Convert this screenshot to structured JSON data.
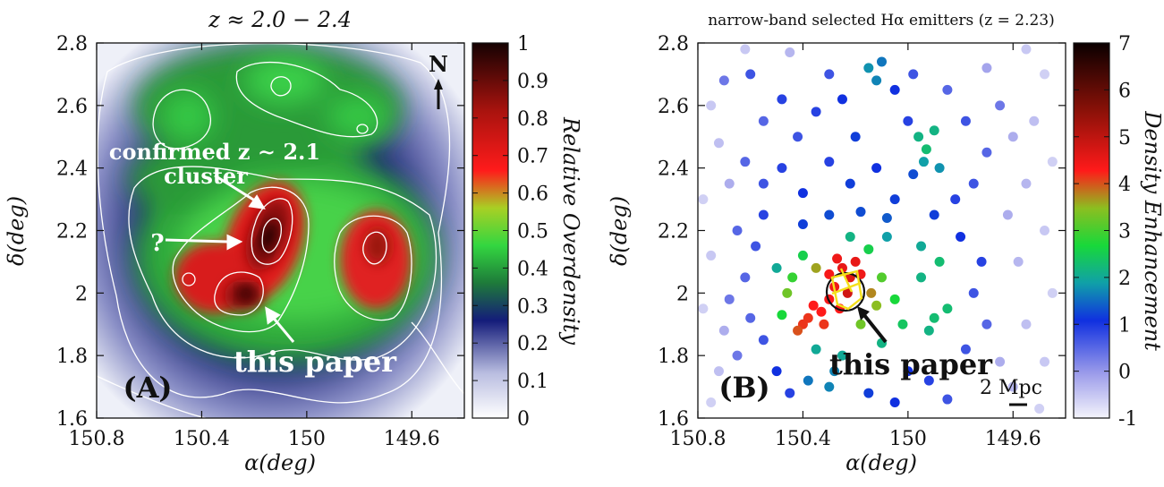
{
  "chart_data": [
    {
      "panel": "(A)",
      "type": "heatmap",
      "title": "z ≈ 2.0 − 2.4",
      "xlabel": "α(deg)",
      "ylabel": "δ(deg)",
      "xlim": [
        150.8,
        149.4
      ],
      "ylim": [
        1.6,
        2.8
      ],
      "x_ticks": [
        "150.8",
        "150.4",
        "150",
        "149.6"
      ],
      "y_ticks": [
        "1.6",
        "1.8",
        "2",
        "2.2",
        "2.4",
        "2.6",
        "2.8"
      ],
      "colorbar": {
        "label": "Relative Overdensity",
        "range": [
          0,
          1
        ],
        "ticks": [
          "0",
          "0.1",
          "0.2",
          "0.3",
          "0.4",
          "0.5",
          "0.6",
          "0.7",
          "0.8",
          "0.9",
          "1"
        ]
      },
      "annotations": {
        "north": "N",
        "cluster_line1": "confirmed z ∼ 2.1",
        "cluster_line2": "cluster",
        "question": "?",
        "this_paper": "this paper"
      },
      "peaks": [
        {
          "ra": 150.2,
          "dec": 2.16,
          "level": 1.0
        },
        {
          "ra": 150.25,
          "dec": 1.99,
          "level": 0.85
        },
        {
          "ra": 149.72,
          "dec": 2.12,
          "level": 0.78
        },
        {
          "ra": 150.45,
          "dec": 2.05,
          "level": 0.62
        },
        {
          "ra": 150.15,
          "dec": 2.68,
          "level": 0.4
        },
        {
          "ra": 150.5,
          "dec": 2.55,
          "level": 0.38
        },
        {
          "ra": 149.85,
          "dec": 2.55,
          "level": 0.4
        }
      ]
    },
    {
      "panel": "(B)",
      "type": "scatter",
      "title": "narrow-band selected Hα emitters (z = 2.23)",
      "xlabel": "α(deg)",
      "ylabel": "δ(deg)",
      "xlim": [
        150.8,
        149.4
      ],
      "ylim": [
        1.6,
        2.8
      ],
      "x_ticks": [
        "150.8",
        "150.4",
        "150",
        "149.6"
      ],
      "y_ticks": [
        "1.6",
        "1.8",
        "2",
        "2.2",
        "2.4",
        "2.6",
        "2.8"
      ],
      "colorbar": {
        "label": "Density Enhancement",
        "range": [
          -1,
          7
        ],
        "ticks": [
          "-1",
          "0",
          "1",
          "2",
          "3",
          "4",
          "5",
          "6",
          "7"
        ]
      },
      "annotations": {
        "this_paper": "this paper",
        "scale_bar": "2 Mpc"
      },
      "points": [
        {
          "ra": 150.25,
          "dec": 2.08,
          "v": 3.3
        },
        {
          "ra": 150.22,
          "dec": 2.05,
          "v": 3.4
        },
        {
          "ra": 150.28,
          "dec": 2.02,
          "v": 3.2
        },
        {
          "ra": 150.3,
          "dec": 1.98,
          "v": 3.1
        },
        {
          "ra": 150.33,
          "dec": 1.94,
          "v": 3.0
        },
        {
          "ra": 150.36,
          "dec": 1.96,
          "v": 3.0
        },
        {
          "ra": 150.38,
          "dec": 1.92,
          "v": 2.9
        },
        {
          "ra": 150.4,
          "dec": 1.9,
          "v": 2.9
        },
        {
          "ra": 150.42,
          "dec": 1.88,
          "v": 2.8
        },
        {
          "ra": 150.2,
          "dec": 2.1,
          "v": 3.3
        },
        {
          "ra": 150.18,
          "dec": 2.06,
          "v": 3.2
        },
        {
          "ra": 150.26,
          "dec": 1.95,
          "v": 3.0
        },
        {
          "ra": 150.32,
          "dec": 1.9,
          "v": 2.9
        },
        {
          "ra": 150.23,
          "dec": 2.0,
          "v": 3.6
        },
        {
          "ra": 150.27,
          "dec": 2.11,
          "v": 3.2
        },
        {
          "ra": 150.3,
          "dec": 2.06,
          "v": 3.1
        },
        {
          "ra": 150.14,
          "dec": 2.0,
          "v": 2.6
        },
        {
          "ra": 150.12,
          "dec": 1.96,
          "v": 2.4
        },
        {
          "ra": 150.46,
          "dec": 2.0,
          "v": 2.3
        },
        {
          "ra": 150.44,
          "dec": 2.05,
          "v": 2.1
        },
        {
          "ra": 150.1,
          "dec": 2.05,
          "v": 2.2
        },
        {
          "ra": 150.35,
          "dec": 2.08,
          "v": 2.5
        },
        {
          "ra": 150.18,
          "dec": 1.9,
          "v": 2.3
        },
        {
          "ra": 150.05,
          "dec": 1.98,
          "v": 2.0
        },
        {
          "ra": 150.48,
          "dec": 1.93,
          "v": 2.0
        },
        {
          "ra": 150.4,
          "dec": 2.12,
          "v": 1.9
        },
        {
          "ra": 150.15,
          "dec": 2.14,
          "v": 1.9
        },
        {
          "ra": 150.02,
          "dec": 1.9,
          "v": 1.8
        },
        {
          "ra": 149.9,
          "dec": 1.92,
          "v": 1.7
        },
        {
          "ra": 149.85,
          "dec": 1.95,
          "v": 1.7
        },
        {
          "ra": 149.95,
          "dec": 2.05,
          "v": 1.6
        },
        {
          "ra": 149.88,
          "dec": 2.1,
          "v": 1.7
        },
        {
          "ra": 149.92,
          "dec": 1.88,
          "v": 1.6
        },
        {
          "ra": 150.25,
          "dec": 1.8,
          "v": 1.5
        },
        {
          "ra": 150.35,
          "dec": 1.82,
          "v": 1.5
        },
        {
          "ra": 150.1,
          "dec": 1.84,
          "v": 1.6
        },
        {
          "ra": 150.5,
          "dec": 2.08,
          "v": 1.5
        },
        {
          "ra": 150.22,
          "dec": 2.18,
          "v": 1.6
        },
        {
          "ra": 150.08,
          "dec": 2.18,
          "v": 1.4
        },
        {
          "ra": 149.95,
          "dec": 2.15,
          "v": 1.5
        },
        {
          "ra": 149.96,
          "dec": 2.5,
          "v": 1.6
        },
        {
          "ra": 149.93,
          "dec": 2.46,
          "v": 1.7
        },
        {
          "ra": 149.9,
          "dec": 2.52,
          "v": 1.6
        },
        {
          "ra": 149.94,
          "dec": 2.42,
          "v": 1.4
        },
        {
          "ra": 149.88,
          "dec": 2.4,
          "v": 1.3
        },
        {
          "ra": 150.15,
          "dec": 2.72,
          "v": 1.3
        },
        {
          "ra": 150.12,
          "dec": 2.68,
          "v": 1.2
        },
        {
          "ra": 150.1,
          "dec": 2.74,
          "v": 1.1
        },
        {
          "ra": 150.3,
          "dec": 1.7,
          "v": 1.2
        },
        {
          "ra": 150.38,
          "dec": 1.72,
          "v": 1.1
        },
        {
          "ra": 150.28,
          "dec": 1.75,
          "v": 1.2
        },
        {
          "ra": 150.7,
          "dec": 2.68,
          "v": 0.2
        },
        {
          "ra": 150.6,
          "dec": 2.7,
          "v": 0.4
        },
        {
          "ra": 150.55,
          "dec": 2.55,
          "v": 0.3
        },
        {
          "ra": 150.48,
          "dec": 2.62,
          "v": 0.5
        },
        {
          "ra": 150.42,
          "dec": 2.5,
          "v": 0.4
        },
        {
          "ra": 150.35,
          "dec": 2.58,
          "v": 0.5
        },
        {
          "ra": 150.3,
          "dec": 2.7,
          "v": 0.4
        },
        {
          "ra": 150.25,
          "dec": 2.62,
          "v": 0.6
        },
        {
          "ra": 150.2,
          "dec": 2.5,
          "v": 0.7
        },
        {
          "ra": 150.05,
          "dec": 2.65,
          "v": 0.6
        },
        {
          "ra": 150.0,
          "dec": 2.55,
          "v": 0.5
        },
        {
          "ra": 149.98,
          "dec": 2.7,
          "v": 0.4
        },
        {
          "ra": 149.85,
          "dec": 2.65,
          "v": 0.3
        },
        {
          "ra": 149.78,
          "dec": 2.55,
          "v": 0.4
        },
        {
          "ra": 149.7,
          "dec": 2.45,
          "v": 0.3
        },
        {
          "ra": 149.65,
          "dec": 2.6,
          "v": 0.2
        },
        {
          "ra": 150.62,
          "dec": 2.42,
          "v": 0.3
        },
        {
          "ra": 150.55,
          "dec": 2.35,
          "v": 0.4
        },
        {
          "ra": 150.48,
          "dec": 2.4,
          "v": 0.5
        },
        {
          "ra": 150.4,
          "dec": 2.32,
          "v": 0.6
        },
        {
          "ra": 150.3,
          "dec": 2.42,
          "v": 0.5
        },
        {
          "ra": 150.22,
          "dec": 2.35,
          "v": 0.7
        },
        {
          "ra": 150.12,
          "dec": 2.4,
          "v": 0.6
        },
        {
          "ra": 150.05,
          "dec": 2.3,
          "v": 0.7
        },
        {
          "ra": 149.98,
          "dec": 2.38,
          "v": 0.8
        },
        {
          "ra": 149.82,
          "dec": 2.3,
          "v": 0.5
        },
        {
          "ra": 149.75,
          "dec": 2.35,
          "v": 0.4
        },
        {
          "ra": 150.65,
          "dec": 2.2,
          "v": 0.3
        },
        {
          "ra": 150.58,
          "dec": 2.15,
          "v": 0.4
        },
        {
          "ra": 150.55,
          "dec": 2.25,
          "v": 0.5
        },
        {
          "ra": 150.62,
          "dec": 2.05,
          "v": 0.3
        },
        {
          "ra": 150.68,
          "dec": 1.98,
          "v": 0.2
        },
        {
          "ra": 150.6,
          "dec": 1.92,
          "v": 0.3
        },
        {
          "ra": 150.55,
          "dec": 1.85,
          "v": 0.4
        },
        {
          "ra": 150.65,
          "dec": 1.8,
          "v": 0.2
        },
        {
          "ra": 149.8,
          "dec": 2.18,
          "v": 0.6
        },
        {
          "ra": 149.72,
          "dec": 2.1,
          "v": 0.5
        },
        {
          "ra": 149.75,
          "dec": 2.0,
          "v": 0.4
        },
        {
          "ra": 149.7,
          "dec": 1.9,
          "v": 0.3
        },
        {
          "ra": 149.78,
          "dec": 1.82,
          "v": 0.4
        },
        {
          "ra": 150.0,
          "dec": 1.75,
          "v": 0.6
        },
        {
          "ra": 149.92,
          "dec": 1.72,
          "v": 0.5
        },
        {
          "ra": 150.15,
          "dec": 1.68,
          "v": 0.7
        },
        {
          "ra": 150.05,
          "dec": 1.65,
          "v": 0.6
        },
        {
          "ra": 149.85,
          "dec": 1.66,
          "v": 0.4
        },
        {
          "ra": 150.45,
          "dec": 1.68,
          "v": 0.5
        },
        {
          "ra": 150.5,
          "dec": 1.75,
          "v": 0.6
        },
        {
          "ra": 150.4,
          "dec": 2.22,
          "v": 0.7
        },
        {
          "ra": 150.3,
          "dec": 2.25,
          "v": 0.8
        },
        {
          "ra": 150.18,
          "dec": 2.26,
          "v": 0.8
        },
        {
          "ra": 150.08,
          "dec": 2.24,
          "v": 0.9
        },
        {
          "ra": 149.9,
          "dec": 2.25,
          "v": 0.7
        },
        {
          "ra": 150.75,
          "dec": 2.6,
          "v": -0.5
        },
        {
          "ra": 150.72,
          "dec": 2.48,
          "v": -0.4
        },
        {
          "ra": 150.78,
          "dec": 2.3,
          "v": -0.6
        },
        {
          "ra": 150.75,
          "dec": 2.12,
          "v": -0.5
        },
        {
          "ra": 150.78,
          "dec": 1.95,
          "v": -0.6
        },
        {
          "ra": 150.72,
          "dec": 1.75,
          "v": -0.4
        },
        {
          "ra": 150.75,
          "dec": 1.65,
          "v": -0.6
        },
        {
          "ra": 150.62,
          "dec": 2.78,
          "v": -0.5
        },
        {
          "ra": 150.45,
          "dec": 2.77,
          "v": -0.3
        },
        {
          "ra": 149.55,
          "dec": 2.78,
          "v": -0.5
        },
        {
          "ra": 149.48,
          "dec": 2.7,
          "v": -0.6
        },
        {
          "ra": 149.52,
          "dec": 2.55,
          "v": -0.4
        },
        {
          "ra": 149.45,
          "dec": 2.42,
          "v": -0.6
        },
        {
          "ra": 149.55,
          "dec": 2.35,
          "v": -0.3
        },
        {
          "ra": 149.48,
          "dec": 2.2,
          "v": -0.5
        },
        {
          "ra": 149.58,
          "dec": 2.1,
          "v": -0.3
        },
        {
          "ra": 149.45,
          "dec": 2.0,
          "v": -0.6
        },
        {
          "ra": 149.55,
          "dec": 1.9,
          "v": -0.4
        },
        {
          "ra": 149.48,
          "dec": 1.78,
          "v": -0.5
        },
        {
          "ra": 149.6,
          "dec": 1.7,
          "v": -0.3
        },
        {
          "ra": 149.5,
          "dec": 1.63,
          "v": -0.6
        },
        {
          "ra": 149.65,
          "dec": 1.78,
          "v": -0.2
        },
        {
          "ra": 149.62,
          "dec": 2.25,
          "v": -0.2
        },
        {
          "ra": 149.6,
          "dec": 2.5,
          "v": -0.2
        },
        {
          "ra": 149.7,
          "dec": 2.72,
          "v": -0.1
        },
        {
          "ra": 150.68,
          "dec": 2.35,
          "v": -0.2
        },
        {
          "ra": 150.7,
          "dec": 1.88,
          "v": -0.2
        }
      ]
    }
  ]
}
